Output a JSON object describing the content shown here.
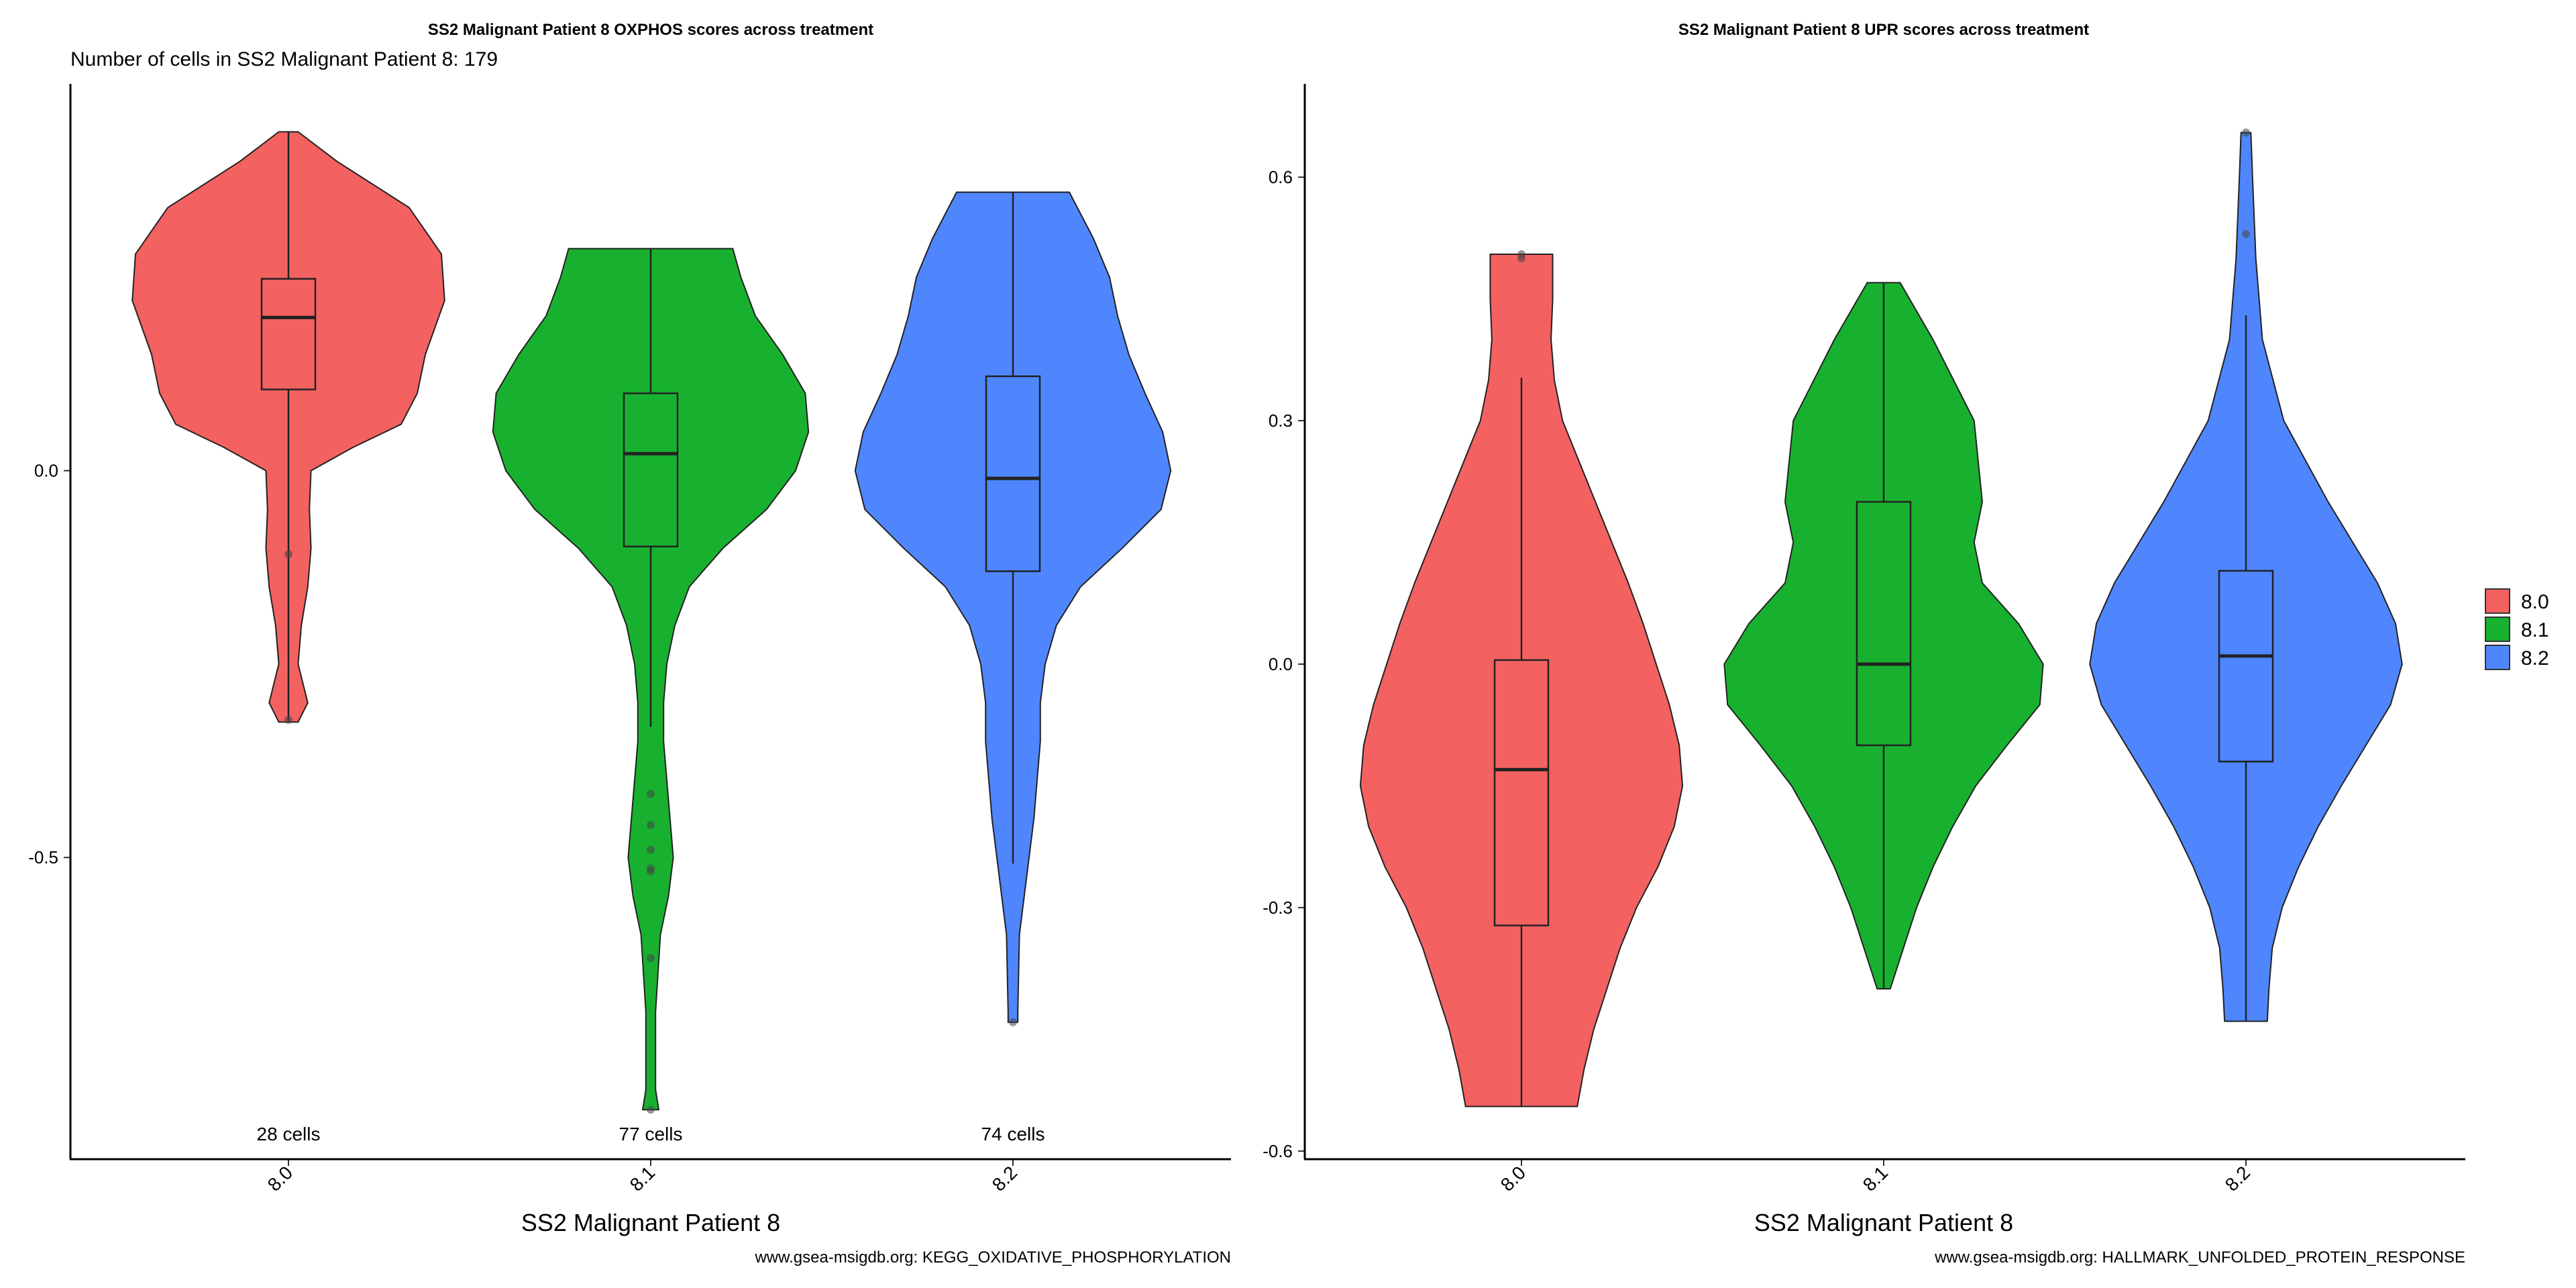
{
  "chart_data": [
    {
      "type": "violin",
      "title": "SS2 Malignant Patient 8 OXPHOS scores across treatment",
      "subtitle": "Number of cells in SS2 Malignant Patient 8: 179",
      "xlabel": "SS2 Malignant Patient 8",
      "ylabel": "",
      "caption": "www.gsea-msigdb.org: KEGG_OXIDATIVE_PHOSPHORYLATION",
      "ylim": [
        -0.89,
        0.5
      ],
      "yticks": [
        0.0,
        -0.5
      ],
      "ytick_labels": [
        "0.0",
        "-0.5"
      ],
      "categories": [
        "8.0",
        "8.1",
        "8.2"
      ],
      "colors": [
        "#F36161",
        "#18B12F",
        "#4F86FD"
      ],
      "cell_counts": [
        "28 cells",
        "77 cells",
        "74 cells"
      ],
      "series": [
        {
          "name": "8.0",
          "min": -0.325,
          "q1": 0.105,
          "median": 0.198,
          "q3": 0.248,
          "max": 0.438,
          "outliers": [
            -0.108,
            -0.322
          ],
          "violin": [
            [
              0.438,
              0.06
            ],
            [
              0.4,
              0.3
            ],
            [
              0.34,
              0.75
            ],
            [
              0.28,
              0.95
            ],
            [
              0.22,
              0.97
            ],
            [
              0.15,
              0.85
            ],
            [
              0.1,
              0.8
            ],
            [
              0.06,
              0.7
            ],
            [
              0.03,
              0.4
            ],
            [
              0.0,
              0.14
            ],
            [
              -0.05,
              0.13
            ],
            [
              -0.1,
              0.14
            ],
            [
              -0.15,
              0.12
            ],
            [
              -0.2,
              0.08
            ],
            [
              -0.25,
              0.06
            ],
            [
              -0.3,
              0.12
            ],
            [
              -0.325,
              0.06
            ]
          ]
        },
        {
          "name": "8.1",
          "min": -0.331,
          "q1": -0.098,
          "median": 0.022,
          "q3": 0.1,
          "max": 0.287,
          "outliers": [
            -0.418,
            -0.458,
            -0.49,
            -0.514,
            -0.518,
            -0.63,
            -0.826
          ],
          "violin": [
            [
              0.287,
              0.51
            ],
            [
              0.25,
              0.56
            ],
            [
              0.2,
              0.65
            ],
            [
              0.15,
              0.82
            ],
            [
              0.1,
              0.96
            ],
            [
              0.05,
              0.98
            ],
            [
              0.0,
              0.9
            ],
            [
              -0.05,
              0.72
            ],
            [
              -0.1,
              0.45
            ],
            [
              -0.15,
              0.24
            ],
            [
              -0.2,
              0.15
            ],
            [
              -0.25,
              0.1
            ],
            [
              -0.3,
              0.08
            ],
            [
              -0.35,
              0.08
            ],
            [
              -0.4,
              0.1
            ],
            [
              -0.45,
              0.12
            ],
            [
              -0.5,
              0.14
            ],
            [
              -0.55,
              0.11
            ],
            [
              -0.6,
              0.06
            ],
            [
              -0.7,
              0.03
            ],
            [
              -0.8,
              0.03
            ],
            [
              -0.826,
              0.05
            ]
          ]
        },
        {
          "name": "8.2",
          "min": -0.508,
          "q1": -0.13,
          "median": -0.01,
          "q3": 0.122,
          "max": 0.36,
          "outliers": [
            -0.713
          ],
          "violin": [
            [
              0.36,
              0.35
            ],
            [
              0.3,
              0.5
            ],
            [
              0.25,
              0.6
            ],
            [
              0.2,
              0.65
            ],
            [
              0.15,
              0.72
            ],
            [
              0.1,
              0.82
            ],
            [
              0.05,
              0.93
            ],
            [
              0.0,
              0.98
            ],
            [
              -0.05,
              0.92
            ],
            [
              -0.1,
              0.68
            ],
            [
              -0.15,
              0.42
            ],
            [
              -0.2,
              0.27
            ],
            [
              -0.25,
              0.2
            ],
            [
              -0.3,
              0.17
            ],
            [
              -0.35,
              0.17
            ],
            [
              -0.4,
              0.15
            ],
            [
              -0.45,
              0.13
            ],
            [
              -0.5,
              0.1
            ],
            [
              -0.55,
              0.07
            ],
            [
              -0.6,
              0.04
            ],
            [
              -0.7,
              0.03
            ],
            [
              -0.713,
              0.03
            ]
          ]
        }
      ]
    },
    {
      "type": "violin",
      "title": "SS2 Malignant Patient 8 UPR scores across treatment",
      "xlabel": "SS2 Malignant Patient 8",
      "ylabel": "",
      "caption": "www.gsea-msigdb.org: HALLMARK_UNFOLDED_PROTEIN_RESPONSE",
      "ylim": [
        -0.61,
        0.715
      ],
      "yticks": [
        0.6,
        0.3,
        0.0,
        -0.3,
        -0.6
      ],
      "ytick_labels": [
        "0.6",
        "0.3",
        "0.0",
        "-0.3",
        "-0.6"
      ],
      "categories": [
        "8.0",
        "8.1",
        "8.2"
      ],
      "colors": [
        "#F36161",
        "#18B12F",
        "#4F86FD"
      ],
      "series": [
        {
          "name": "8.0",
          "min": -0.545,
          "q1": -0.322,
          "median": -0.13,
          "q3": 0.005,
          "max": 0.353,
          "outliers": [
            0.505,
            0.5
          ],
          "violin": [
            [
              0.505,
              0.19
            ],
            [
              0.45,
              0.19
            ],
            [
              0.4,
              0.18
            ],
            [
              0.35,
              0.2
            ],
            [
              0.3,
              0.25
            ],
            [
              0.25,
              0.35
            ],
            [
              0.2,
              0.45
            ],
            [
              0.15,
              0.55
            ],
            [
              0.1,
              0.65
            ],
            [
              0.05,
              0.74
            ],
            [
              0.0,
              0.82
            ],
            [
              -0.05,
              0.9
            ],
            [
              -0.1,
              0.96
            ],
            [
              -0.15,
              0.98
            ],
            [
              -0.2,
              0.93
            ],
            [
              -0.25,
              0.83
            ],
            [
              -0.3,
              0.7
            ],
            [
              -0.35,
              0.6
            ],
            [
              -0.4,
              0.52
            ],
            [
              -0.45,
              0.44
            ],
            [
              -0.5,
              0.38
            ],
            [
              -0.545,
              0.34
            ]
          ]
        },
        {
          "name": "8.1",
          "min": -0.4,
          "q1": -0.1,
          "median": 0.0,
          "q3": 0.2,
          "max": 0.47,
          "outliers": [],
          "violin": [
            [
              0.47,
              0.1
            ],
            [
              0.4,
              0.3
            ],
            [
              0.3,
              0.55
            ],
            [
              0.2,
              0.6
            ],
            [
              0.15,
              0.55
            ],
            [
              0.1,
              0.6
            ],
            [
              0.05,
              0.82
            ],
            [
              0.0,
              0.97
            ],
            [
              -0.05,
              0.95
            ],
            [
              -0.1,
              0.75
            ],
            [
              -0.15,
              0.56
            ],
            [
              -0.2,
              0.42
            ],
            [
              -0.25,
              0.3
            ],
            [
              -0.3,
              0.2
            ],
            [
              -0.35,
              0.12
            ],
            [
              -0.4,
              0.04
            ]
          ]
        },
        {
          "name": "8.2",
          "min": -0.44,
          "q1": -0.12,
          "median": 0.01,
          "q3": 0.115,
          "max": 0.43,
          "outliers": [
            0.655,
            0.53
          ],
          "violin": [
            [
              0.655,
              0.03
            ],
            [
              0.6,
              0.04
            ],
            [
              0.5,
              0.06
            ],
            [
              0.4,
              0.1
            ],
            [
              0.3,
              0.23
            ],
            [
              0.2,
              0.5
            ],
            [
              0.1,
              0.8
            ],
            [
              0.05,
              0.91
            ],
            [
              0.0,
              0.95
            ],
            [
              -0.05,
              0.88
            ],
            [
              -0.1,
              0.73
            ],
            [
              -0.15,
              0.58
            ],
            [
              -0.2,
              0.44
            ],
            [
              -0.25,
              0.32
            ],
            [
              -0.3,
              0.22
            ],
            [
              -0.35,
              0.16
            ],
            [
              -0.4,
              0.14
            ],
            [
              -0.44,
              0.13
            ]
          ]
        }
      ]
    }
  ],
  "legend": {
    "position": "right",
    "entries": [
      {
        "label": "8.0",
        "color": "#F36161"
      },
      {
        "label": "8.1",
        "color": "#18B12F"
      },
      {
        "label": "8.2",
        "color": "#4F86FD"
      }
    ]
  }
}
